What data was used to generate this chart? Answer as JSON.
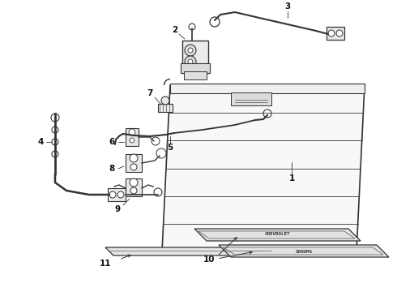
{
  "bg_color": "#ffffff",
  "line_color": "#333333",
  "label_color": "#111111",
  "parts": [
    {
      "id": "1"
    },
    {
      "id": "2"
    },
    {
      "id": "3"
    },
    {
      "id": "4"
    },
    {
      "id": "5"
    },
    {
      "id": "6"
    },
    {
      "id": "7"
    },
    {
      "id": "8"
    },
    {
      "id": "9"
    },
    {
      "id": "10"
    },
    {
      "id": "11"
    }
  ]
}
